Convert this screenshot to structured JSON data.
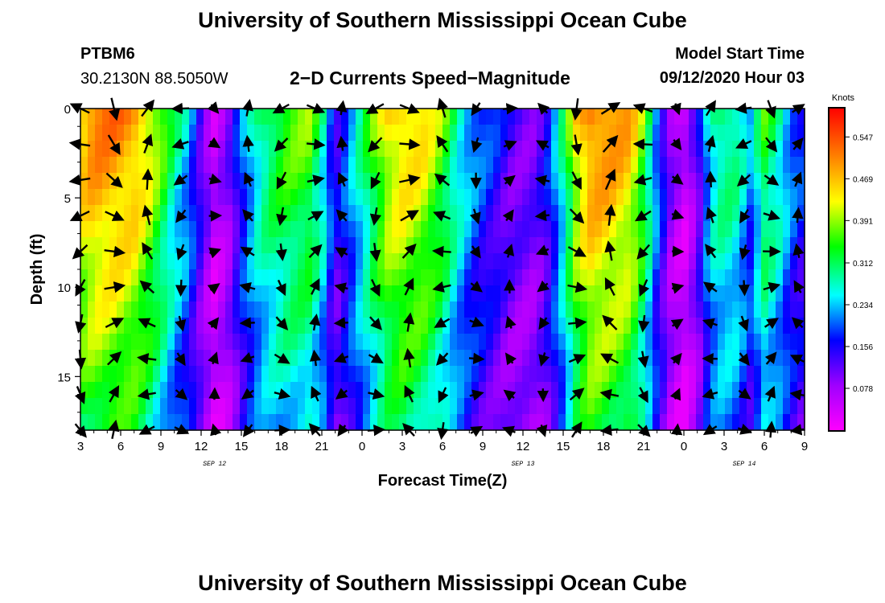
{
  "header": {
    "title": "University of Southern Mississippi Ocean Cube",
    "station": "PTBM6",
    "coords": "30.2130N 88.5050W",
    "subtitle": "2−D Currents Speed−Magnitude",
    "start_label": "Model Start Time",
    "start_value": "09/12/2020 Hour 03"
  },
  "footer": {
    "title": "University of Southern Mississippi Ocean Cube"
  },
  "chart_data": {
    "type": "heatmap",
    "title": "2-D Currents Speed-Magnitude",
    "xlabel": "Forecast Time(Z)",
    "ylabel": "Depth (ft)",
    "x_range": [
      3,
      57
    ],
    "y_range": [
      0,
      18
    ],
    "x_ticks": [
      {
        "t": 3,
        "label": "3"
      },
      {
        "t": 6,
        "label": "6"
      },
      {
        "t": 9,
        "label": "9"
      },
      {
        "t": 12,
        "label": "12"
      },
      {
        "t": 15,
        "label": "15"
      },
      {
        "t": 18,
        "label": "18"
      },
      {
        "t": 21,
        "label": "21"
      },
      {
        "t": 24,
        "label": "0"
      },
      {
        "t": 27,
        "label": "3"
      },
      {
        "t": 30,
        "label": "6"
      },
      {
        "t": 33,
        "label": "9"
      },
      {
        "t": 36,
        "label": "12"
      },
      {
        "t": 39,
        "label": "15"
      },
      {
        "t": 42,
        "label": "18"
      },
      {
        "t": 45,
        "label": "21"
      },
      {
        "t": 48,
        "label": "0"
      },
      {
        "t": 51,
        "label": "3"
      },
      {
        "t": 54,
        "label": "6"
      },
      {
        "t": 57,
        "label": "9"
      }
    ],
    "date_labels": [
      {
        "t": 13,
        "label": "SEP 12"
      },
      {
        "t": 36,
        "label": "SEP 13"
      },
      {
        "t": 52.5,
        "label": "SEP 14"
      }
    ],
    "y_ticks": [
      0,
      5,
      10,
      15
    ],
    "colorbar": {
      "title": "Knots",
      "min": 0,
      "max": 0.6,
      "ticks": [
        "0.547",
        "0.469",
        "0.391",
        "0.312",
        "0.234",
        "0.156",
        "0.078"
      ]
    },
    "depths": [
      0,
      2,
      4,
      6,
      8,
      10,
      12,
      14,
      16,
      18
    ],
    "surface_speed": [
      {
        "t": 3,
        "v": 0.48
      },
      {
        "t": 4,
        "v": 0.52
      },
      {
        "t": 5.5,
        "v": 0.52
      },
      {
        "t": 7,
        "v": 0.5
      },
      {
        "t": 8,
        "v": 0.45
      },
      {
        "t": 9,
        "v": 0.38
      },
      {
        "t": 10,
        "v": 0.3
      },
      {
        "t": 11,
        "v": 0.24
      },
      {
        "t": 12,
        "v": 0.14
      },
      {
        "t": 13,
        "v": 0.06
      },
      {
        "t": 14,
        "v": 0.1
      },
      {
        "t": 15,
        "v": 0.2
      },
      {
        "t": 16,
        "v": 0.28
      },
      {
        "t": 17,
        "v": 0.33
      },
      {
        "t": 18.5,
        "v": 0.37
      },
      {
        "t": 20,
        "v": 0.38
      },
      {
        "t": 21,
        "v": 0.3
      },
      {
        "t": 22,
        "v": 0.15
      },
      {
        "t": 23,
        "v": 0.22
      },
      {
        "t": 24,
        "v": 0.3
      },
      {
        "t": 25,
        "v": 0.38
      },
      {
        "t": 26,
        "v": 0.45
      },
      {
        "t": 27,
        "v": 0.47
      },
      {
        "t": 28.5,
        "v": 0.45
      },
      {
        "t": 30,
        "v": 0.38
      },
      {
        "t": 31,
        "v": 0.3
      },
      {
        "t": 32,
        "v": 0.24
      },
      {
        "t": 33,
        "v": 0.2
      },
      {
        "t": 34,
        "v": 0.17
      },
      {
        "t": 35,
        "v": 0.13
      },
      {
        "t": 36,
        "v": 0.12
      },
      {
        "t": 37,
        "v": 0.12
      },
      {
        "t": 38,
        "v": 0.18
      },
      {
        "t": 39,
        "v": 0.3
      },
      {
        "t": 40,
        "v": 0.45
      },
      {
        "t": 41,
        "v": 0.52
      },
      {
        "t": 42,
        "v": 0.52
      },
      {
        "t": 44,
        "v": 0.48
      },
      {
        "t": 45,
        "v": 0.38
      },
      {
        "t": 46,
        "v": 0.22
      },
      {
        "t": 47,
        "v": 0.1
      },
      {
        "t": 48,
        "v": 0.05
      },
      {
        "t": 49,
        "v": 0.12
      },
      {
        "t": 50,
        "v": 0.28
      },
      {
        "t": 51,
        "v": 0.32
      },
      {
        "t": 52,
        "v": 0.3
      },
      {
        "t": 53,
        "v": 0.22
      },
      {
        "t": 54,
        "v": 0.35
      },
      {
        "t": 55,
        "v": 0.3
      },
      {
        "t": 56,
        "v": 0.22
      },
      {
        "t": 57,
        "v": 0.18
      }
    ],
    "arrow_times": [
      3,
      5.5,
      8,
      10.5,
      13,
      15.5,
      18,
      20.5,
      22.5,
      25,
      27.5,
      30,
      32.5,
      35,
      37.5,
      40,
      42.5,
      45,
      47.5,
      50,
      52.5,
      54.5,
      56.5
    ]
  }
}
